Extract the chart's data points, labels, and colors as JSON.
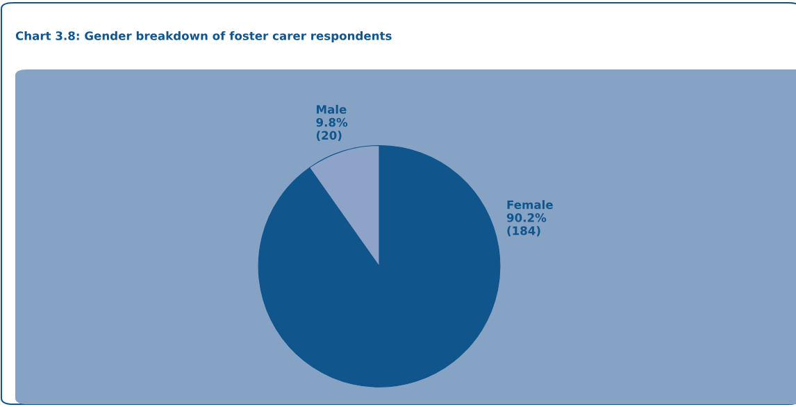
{
  "chart_data": {
    "type": "pie",
    "title": "Chart 3.8: Gender breakdown of foster carer respondents",
    "categories": [
      "Female",
      "Male"
    ],
    "values": [
      90.2,
      9.8
    ],
    "colors": [
      "#10558c",
      "#8ea3c8"
    ],
    "value_labels": [
      "90.2%\n(184)",
      "9.8%\n(20)"
    ]
  }
}
